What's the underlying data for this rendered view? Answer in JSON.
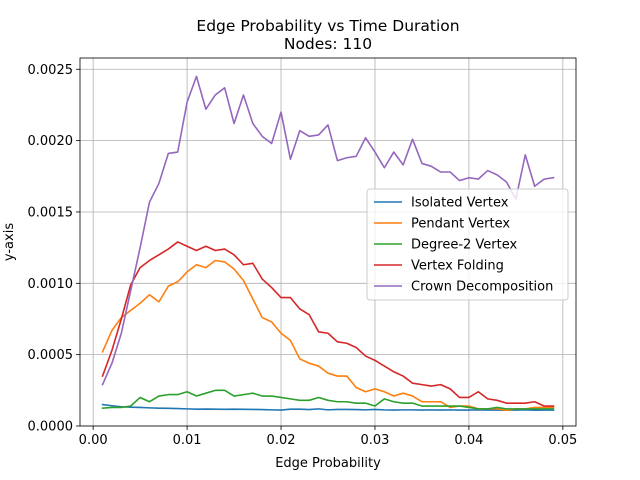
{
  "chart_data": {
    "type": "line",
    "title": "Edge Probability vs Time Duration",
    "subtitle": "Nodes: 110",
    "xlabel": "Edge Probability",
    "ylabel": "y-axis",
    "xlim": [
      -0.0014,
      0.0514
    ],
    "ylim": [
      0,
      0.002579
    ],
    "xticks": [
      0.0,
      0.01,
      0.02,
      0.03,
      0.04,
      0.05
    ],
    "xtick_labels": [
      "0.00",
      "0.01",
      "0.02",
      "0.03",
      "0.04",
      "0.05"
    ],
    "yticks": [
      0.0,
      0.0005,
      0.001,
      0.0015,
      0.002,
      0.0025
    ],
    "ytick_labels": [
      "0.0000",
      "0.0005",
      "0.0010",
      "0.0015",
      "0.0020",
      "0.0025"
    ],
    "grid": true,
    "legend_position": "center-right",
    "x": [
      0.001,
      0.002,
      0.003,
      0.004,
      0.005,
      0.006,
      0.007,
      0.008,
      0.009,
      0.01,
      0.011,
      0.012,
      0.013,
      0.014,
      0.015,
      0.016,
      0.017,
      0.018,
      0.019,
      0.02,
      0.021,
      0.022,
      0.023,
      0.024,
      0.025,
      0.026,
      0.027,
      0.028,
      0.029,
      0.03,
      0.031,
      0.032,
      0.033,
      0.034,
      0.035,
      0.036,
      0.037,
      0.038,
      0.039,
      0.04,
      0.041,
      0.042,
      0.043,
      0.044,
      0.045,
      0.046,
      0.047,
      0.048,
      0.049
    ],
    "series": [
      {
        "name": "Isolated Vertex",
        "color": "#1f77b4",
        "values": [
          0.00015,
          0.000142,
          0.000135,
          0.000132,
          0.00013,
          0.000127,
          0.000125,
          0.000124,
          0.000122,
          0.00012,
          0.000118,
          0.000119,
          0.000118,
          0.000117,
          0.000118,
          0.000117,
          0.000116,
          0.000115,
          0.000113,
          0.000112,
          0.000118,
          0.000118,
          0.000115,
          0.00012,
          0.000113,
          0.000116,
          0.000116,
          0.000115,
          0.000113,
          0.000116,
          0.000113,
          0.000112,
          0.000113,
          0.000113,
          0.000112,
          0.000113,
          0.000112,
          0.000113,
          0.000112,
          0.000112,
          0.000113,
          0.000112,
          0.000112,
          0.000111,
          0.000112,
          0.000113,
          0.000111,
          0.000112,
          0.000112
        ]
      },
      {
        "name": "Pendant Vertex",
        "color": "#ff7f0e",
        "values": [
          0.00052,
          0.00067,
          0.00076,
          0.00081,
          0.00086,
          0.00092,
          0.00087,
          0.00098,
          0.00101,
          0.00108,
          0.00113,
          0.00111,
          0.00116,
          0.00115,
          0.0011,
          0.00102,
          0.00089,
          0.00076,
          0.00073,
          0.00065,
          0.0006,
          0.00047,
          0.00044,
          0.00042,
          0.00037,
          0.00035,
          0.00035,
          0.00027,
          0.00024,
          0.00026,
          0.00024,
          0.00021,
          0.00023,
          0.00021,
          0.00017,
          0.00017,
          0.00017,
          0.00013,
          0.00014,
          0.00014,
          0.00012,
          0.00012,
          0.00012,
          0.00011,
          0.00012,
          0.00012,
          0.00013,
          0.00013,
          0.00013
        ]
      },
      {
        "name": "Degree-2 Vertex",
        "color": "#2ca02c",
        "values": [
          0.000125,
          0.00013,
          0.00013,
          0.00014,
          0.0002,
          0.00017,
          0.00021,
          0.00022,
          0.00022,
          0.00024,
          0.00021,
          0.00023,
          0.00025,
          0.00025,
          0.00021,
          0.00022,
          0.00023,
          0.00021,
          0.00021,
          0.0002,
          0.00019,
          0.00018,
          0.00018,
          0.0002,
          0.00018,
          0.00017,
          0.00017,
          0.00016,
          0.00016,
          0.00014,
          0.00019,
          0.00017,
          0.00016,
          0.00016,
          0.00014,
          0.00014,
          0.00014,
          0.00014,
          0.00014,
          0.00013,
          0.00012,
          0.00012,
          0.00013,
          0.00012,
          0.00012,
          0.00012,
          0.00012,
          0.00012,
          0.00012
        ]
      },
      {
        "name": "Vertex Folding",
        "color": "#d62728",
        "values": [
          0.00035,
          0.00053,
          0.00075,
          0.00099,
          0.00111,
          0.00116,
          0.0012,
          0.00124,
          0.00129,
          0.00126,
          0.00123,
          0.00126,
          0.00123,
          0.00124,
          0.0012,
          0.00113,
          0.00114,
          0.00103,
          0.00097,
          0.0009,
          0.0009,
          0.00082,
          0.00078,
          0.00066,
          0.00065,
          0.00059,
          0.00058,
          0.00055,
          0.00049,
          0.00046,
          0.00042,
          0.00038,
          0.00035,
          0.0003,
          0.00029,
          0.00028,
          0.00029,
          0.00026,
          0.0002,
          0.0002,
          0.00024,
          0.00019,
          0.00018,
          0.00016,
          0.00016,
          0.00016,
          0.00017,
          0.00014,
          0.00014
        ]
      },
      {
        "name": "Crown Decomposition",
        "color": "#9467bd",
        "values": [
          0.00029,
          0.00044,
          0.00065,
          0.00095,
          0.00125,
          0.00157,
          0.0017,
          0.00191,
          0.00192,
          0.00227,
          0.00245,
          0.00222,
          0.00232,
          0.00237,
          0.00212,
          0.00232,
          0.00212,
          0.00203,
          0.00198,
          0.0022,
          0.00187,
          0.00207,
          0.00203,
          0.00204,
          0.00211,
          0.00186,
          0.00188,
          0.00189,
          0.00202,
          0.00192,
          0.00181,
          0.00192,
          0.00183,
          0.00201,
          0.00184,
          0.00182,
          0.00178,
          0.00178,
          0.00172,
          0.00174,
          0.00173,
          0.00179,
          0.00176,
          0.00171,
          0.00159,
          0.0019,
          0.00168,
          0.00173,
          0.00174
        ]
      }
    ]
  }
}
